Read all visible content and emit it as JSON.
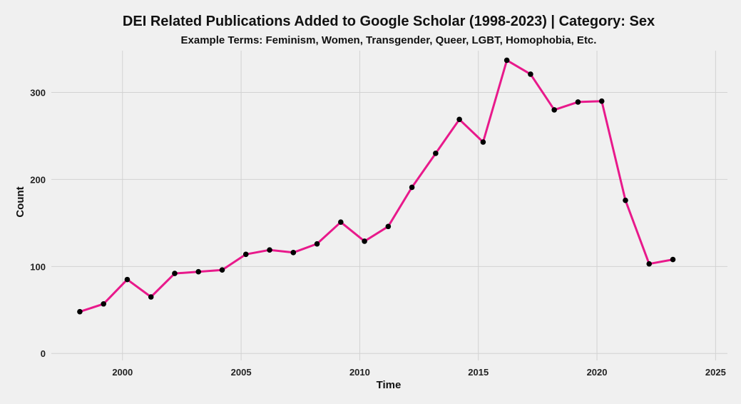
{
  "chart_data": {
    "type": "line",
    "title": "DEI Related Publications Added to Google Scholar (1998-2023) | Category: Sex",
    "subtitle": "Example Terms: Feminism, Women, Transgender, Queer, LGBT, Homophobia, Etc.",
    "xlabel": "Time",
    "ylabel": "Count",
    "xlim": [
      1997,
      2025.5
    ],
    "ylim": [
      -8,
      348
    ],
    "xticks": [
      2000,
      2005,
      2010,
      2015,
      2020,
      2025
    ],
    "yticks": [
      0,
      100,
      200,
      300
    ],
    "grid": true,
    "legend": "none",
    "line_color": "#e8198b",
    "point_color": "#000000",
    "series": [
      {
        "x": [
          1998.2,
          1999.2,
          2000.2,
          2001.2,
          2002.2,
          2003.2,
          2004.2,
          2005.2,
          2006.2,
          2007.2,
          2008.2,
          2009.2,
          2010.2,
          2011.2,
          2012.2,
          2013.2,
          2014.2,
          2015.2,
          2016.2,
          2017.2,
          2018.2,
          2019.2,
          2020.2,
          2021.2,
          2022.2,
          2023.2
        ],
        "values": [
          48,
          57,
          85,
          65,
          92,
          94,
          96,
          114,
          119,
          116,
          126,
          151,
          129,
          146,
          191,
          230,
          269,
          243,
          337,
          321,
          280,
          289,
          290,
          176,
          103,
          108
        ]
      }
    ]
  }
}
